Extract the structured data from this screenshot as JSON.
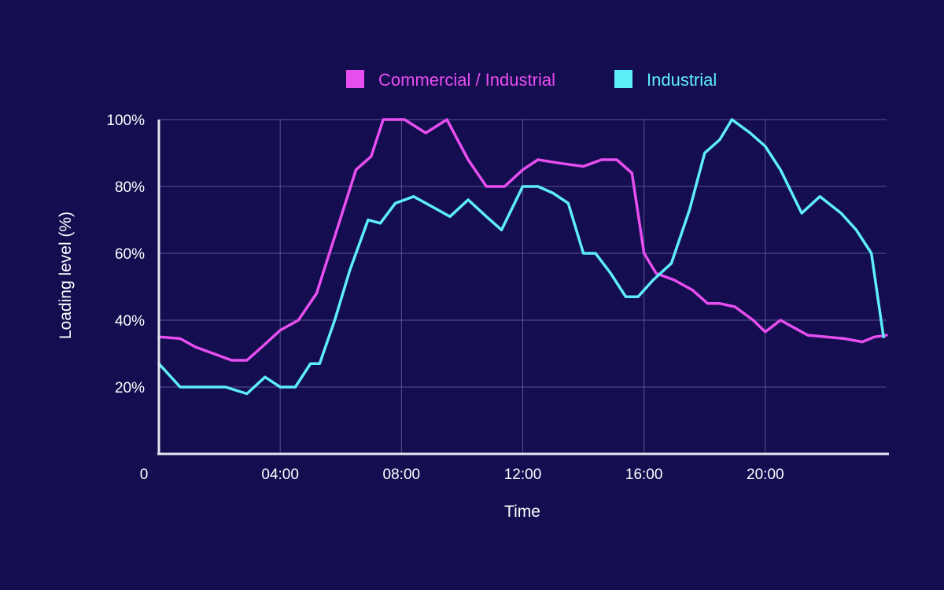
{
  "chart_data": {
    "type": "line",
    "xlabel": "Time",
    "ylabel": "Loading level (%)",
    "x_unit": "hours",
    "xlim": [
      0,
      24
    ],
    "ylim": [
      0,
      100
    ],
    "x_ticks": [
      {
        "value": 0,
        "label": "0"
      },
      {
        "value": 4,
        "label": "04:00"
      },
      {
        "value": 8,
        "label": "08:00"
      },
      {
        "value": 12,
        "label": "12:00"
      },
      {
        "value": 16,
        "label": "16:00"
      },
      {
        "value": 20,
        "label": "20:00"
      }
    ],
    "y_ticks": [
      {
        "value": 20,
        "label": "20%"
      },
      {
        "value": 40,
        "label": "40%"
      },
      {
        "value": 60,
        "label": "60%"
      },
      {
        "value": 80,
        "label": "80%"
      },
      {
        "value": 100,
        "label": "100%"
      }
    ],
    "grid": true,
    "legend_position": "top",
    "background_color": "#140d4f",
    "grid_color": "#5a5490",
    "axis_color": "#e6e6f2",
    "series": [
      {
        "name": "Commercial / Industrial",
        "color": "#e64ef0",
        "x": [
          0,
          0.7,
          1.2,
          1.8,
          2.4,
          2.9,
          3.4,
          4.0,
          4.6,
          5.2,
          5.8,
          6.5,
          7.0,
          7.4,
          8.1,
          8.8,
          9.5,
          10.2,
          10.8,
          11.4,
          12.0,
          12.5,
          13.2,
          14.0,
          14.6,
          15.1,
          15.6,
          16.0,
          16.4,
          17.0,
          17.6,
          18.1,
          18.5,
          19.0,
          19.6,
          20.0,
          20.5,
          20.9,
          21.4,
          22.0,
          22.6,
          23.2,
          23.6,
          24.0
        ],
        "y": [
          35,
          34.5,
          32,
          30,
          28,
          28,
          32,
          37,
          40,
          48,
          65,
          85,
          89,
          100,
          100,
          96,
          100,
          88,
          80,
          80,
          85,
          88,
          87,
          86,
          88,
          88,
          84,
          60,
          54,
          52,
          49,
          45,
          45,
          44,
          40,
          36.5,
          40,
          38,
          35.5,
          35,
          34.5,
          33.5,
          35,
          35.5
        ]
      },
      {
        "name": "Industrial",
        "color": "#5eeef8",
        "x": [
          0,
          0.7,
          1.5,
          2.2,
          2.9,
          3.5,
          4.0,
          4.5,
          5.0,
          5.3,
          5.8,
          6.3,
          6.9,
          7.3,
          7.8,
          8.4,
          9.0,
          9.6,
          10.2,
          10.8,
          11.3,
          12.0,
          12.5,
          13.0,
          13.5,
          14.0,
          14.4,
          14.9,
          15.4,
          15.8,
          16.3,
          16.9,
          17.5,
          18.0,
          18.5,
          18.9,
          19.5,
          20.0,
          20.5,
          21.2,
          21.8,
          22.5,
          23.0,
          23.5,
          23.9
        ],
        "y": [
          27,
          20,
          20,
          20,
          18,
          23,
          20,
          20,
          27,
          27,
          40,
          55,
          70,
          69,
          75,
          77,
          74,
          71,
          76,
          71,
          67,
          80,
          80,
          78,
          75,
          60,
          60,
          54,
          47,
          47,
          52,
          57,
          73,
          90,
          94,
          100,
          96,
          92,
          85,
          72,
          77,
          72,
          67,
          60,
          35
        ]
      }
    ]
  }
}
